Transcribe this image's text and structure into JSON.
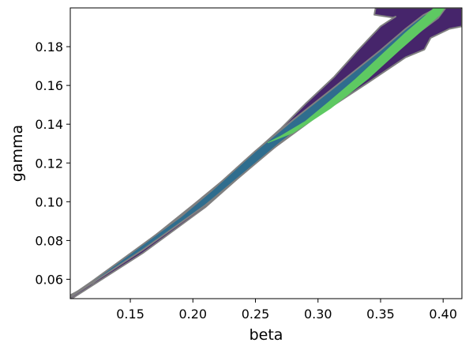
{
  "chart_data": {
    "type": "contour",
    "title": "",
    "xlabel": "beta",
    "ylabel": "gamma",
    "xlim": [
      0.102,
      0.415
    ],
    "ylim": [
      0.05,
      0.2
    ],
    "x_ticks": [
      0.15,
      0.2,
      0.25,
      0.3,
      0.35,
      0.4
    ],
    "x_tick_labels": [
      "0.15",
      "0.20",
      "0.25",
      "0.30",
      "0.35",
      "0.40"
    ],
    "y_ticks": [
      0.06,
      0.08,
      0.1,
      0.12,
      0.14,
      0.16,
      0.18
    ],
    "y_tick_labels": [
      "0.06",
      "0.08",
      "0.10",
      "0.12",
      "0.14",
      "0.16",
      "0.18"
    ],
    "grid": false,
    "colormap": "viridis",
    "levels": [
      {
        "name": "outer",
        "color": "#46256b",
        "edge": "#808080",
        "polygon": [
          [
            0.102,
            0.0495
          ],
          [
            0.16,
            0.0735
          ],
          [
            0.21,
            0.0972
          ],
          [
            0.235,
            0.1115
          ],
          [
            0.26,
            0.1255
          ],
          [
            0.3,
            0.1445
          ],
          [
            0.34,
            0.1615
          ],
          [
            0.37,
            0.1745
          ],
          [
            0.385,
            0.1785
          ],
          [
            0.39,
            0.1845
          ],
          [
            0.405,
            0.1892
          ],
          [
            0.415,
            0.1905
          ],
          [
            0.415,
            0.2
          ],
          [
            0.346,
            0.2
          ],
          [
            0.345,
            0.1965
          ],
          [
            0.36,
            0.195
          ],
          [
            0.362,
            0.1955
          ],
          [
            0.35,
            0.1905
          ],
          [
            0.332,
            0.1782
          ],
          [
            0.313,
            0.1645
          ],
          [
            0.29,
            0.1505
          ],
          [
            0.27,
            0.1375
          ],
          [
            0.24,
            0.1203
          ],
          [
            0.225,
            0.1115
          ],
          [
            0.2,
            0.0982
          ],
          [
            0.16,
            0.0775
          ],
          [
            0.12,
            0.058
          ],
          [
            0.102,
            0.0518
          ]
        ]
      },
      {
        "name": "middle",
        "color": "#2f6d8e",
        "edge": "#808080",
        "polygon": [
          [
            0.102,
            0.0506
          ],
          [
            0.16,
            0.0752
          ],
          [
            0.21,
            0.0982
          ],
          [
            0.24,
            0.1143
          ],
          [
            0.27,
            0.1305
          ],
          [
            0.31,
            0.1502
          ],
          [
            0.35,
            0.1705
          ],
          [
            0.378,
            0.1862
          ],
          [
            0.396,
            0.1948
          ],
          [
            0.402,
            0.2
          ],
          [
            0.395,
            0.2
          ],
          [
            0.384,
            0.1962
          ],
          [
            0.37,
            0.1892
          ],
          [
            0.35,
            0.1782
          ],
          [
            0.31,
            0.1575
          ],
          [
            0.28,
            0.1422
          ],
          [
            0.25,
            0.1262
          ],
          [
            0.215,
            0.1058
          ],
          [
            0.19,
            0.0922
          ],
          [
            0.15,
            0.0733
          ],
          [
            0.12,
            0.0592
          ],
          [
            0.102,
            0.0512
          ]
        ]
      },
      {
        "name": "inner",
        "color": "#5ec962",
        "edge": "#5ec962",
        "polygon": [
          [
            0.26,
            0.1305
          ],
          [
            0.28,
            0.1355
          ],
          [
            0.31,
            0.1482
          ],
          [
            0.34,
            0.1635
          ],
          [
            0.365,
            0.1782
          ],
          [
            0.385,
            0.1895
          ],
          [
            0.397,
            0.1962
          ],
          [
            0.401,
            0.2
          ],
          [
            0.393,
            0.2
          ],
          [
            0.382,
            0.1938
          ],
          [
            0.37,
            0.1872
          ],
          [
            0.35,
            0.1752
          ],
          [
            0.33,
            0.1632
          ],
          [
            0.31,
            0.1522
          ],
          [
            0.29,
            0.1415
          ],
          [
            0.27,
            0.1338
          ]
        ]
      }
    ]
  }
}
